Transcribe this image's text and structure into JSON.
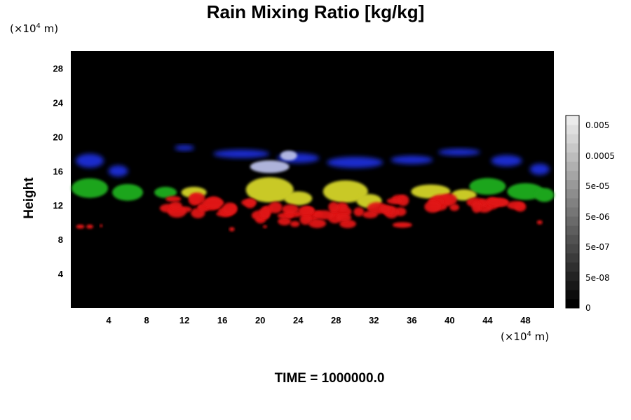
{
  "chart_data": {
    "type": "heatmap",
    "title": "Rain Mixing Ratio [kg/kg]",
    "ylabel": "Height",
    "y_unit": {
      "prefix": "(×10",
      "exp": "4",
      "suffix": " m)"
    },
    "x_unit": {
      "prefix": "(×10",
      "exp": "4",
      "suffix": " m)"
    },
    "xlim": [
      0,
      51
    ],
    "ylim": [
      0,
      30
    ],
    "x_ticks": [
      4,
      8,
      12,
      16,
      20,
      24,
      28,
      32,
      36,
      40,
      44,
      48
    ],
    "y_ticks": [
      4,
      8,
      12,
      16,
      20,
      24,
      28
    ],
    "colorbar": {
      "ticks": [
        "0.005",
        "0.0005",
        "5e-05",
        "5e-06",
        "5e-07",
        "5e-08",
        "0"
      ]
    },
    "footer": "TIME = 1000000.0",
    "background_color": "#000000",
    "band_colors": {
      "red": "#e01414",
      "green": "#1fa51f",
      "blue": "#1e2fd8",
      "yellow": "#c9c928",
      "white": "#b8bde6"
    }
  }
}
